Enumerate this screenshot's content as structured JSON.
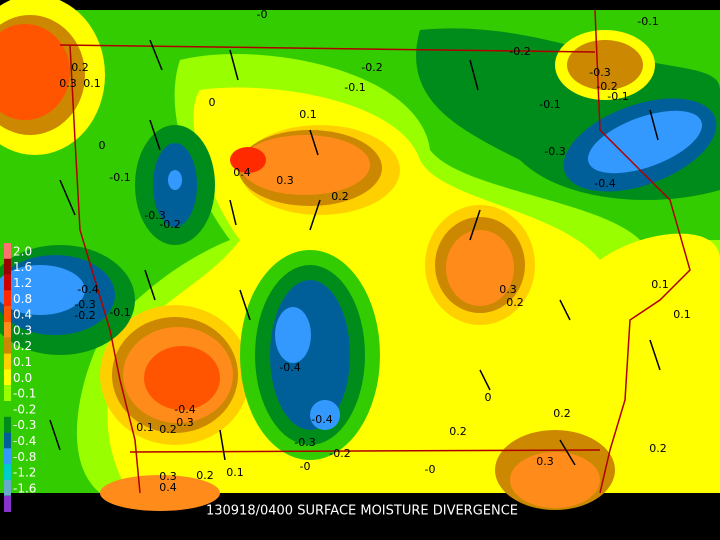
{
  "caption": "130918/0400 SURFACE MOISTURE DIVERGENCE",
  "legend": [
    {
      "label": "2.0",
      "color": "#ff7070"
    },
    {
      "label": "1.6",
      "color": "#990000"
    },
    {
      "label": "1.2",
      "color": "#cc0000"
    },
    {
      "label": "0.8",
      "color": "#ff2a00"
    },
    {
      "label": "0.4",
      "color": "#ff5500"
    },
    {
      "label": "0.3",
      "color": "#ff8c1a"
    },
    {
      "label": "0.2",
      "color": "#cc8800"
    },
    {
      "label": "0.1",
      "color": "#ffd000"
    },
    {
      "label": "0.0",
      "color": "#ffff00"
    },
    {
      "label": "-0.1",
      "color": "#99ff00"
    },
    {
      "label": "-0.2",
      "color": "#33cc00"
    },
    {
      "label": "-0.3",
      "color": "#008c1a"
    },
    {
      "label": "-0.4",
      "color": "#005f99"
    },
    {
      "label": "-0.8",
      "color": "#3399ff"
    },
    {
      "label": "-1.2",
      "color": "#00cccc"
    },
    {
      "label": "-1.6",
      "color": "#66aacc"
    }
  ],
  "contour_labels": [
    "-0",
    "-0.1",
    "-0.2",
    "0.2",
    "0.3",
    "0.1",
    "-0.2",
    "-0.1",
    "-0.3",
    "-0.2",
    "-0.1",
    "0",
    "0.1",
    "-0.1",
    "0",
    "-0.3",
    "0.4",
    "0.3",
    "-0.1",
    "-0.4",
    "0.2",
    "-0.3",
    "-0.2",
    "-0.4",
    "0.3",
    "0.2",
    "-0.3",
    "-0.2",
    "-0.1",
    "0.1",
    "0.1",
    "-0.4",
    "0",
    "-0.4",
    "0.2",
    "-0.4",
    "0.1",
    "0.2",
    "0.3",
    "0.2",
    "-0.3",
    "-0.2",
    "0.3",
    "-0",
    "-0",
    "0.2",
    "0.1",
    "0.3",
    "0.4",
    "0.2"
  ]
}
